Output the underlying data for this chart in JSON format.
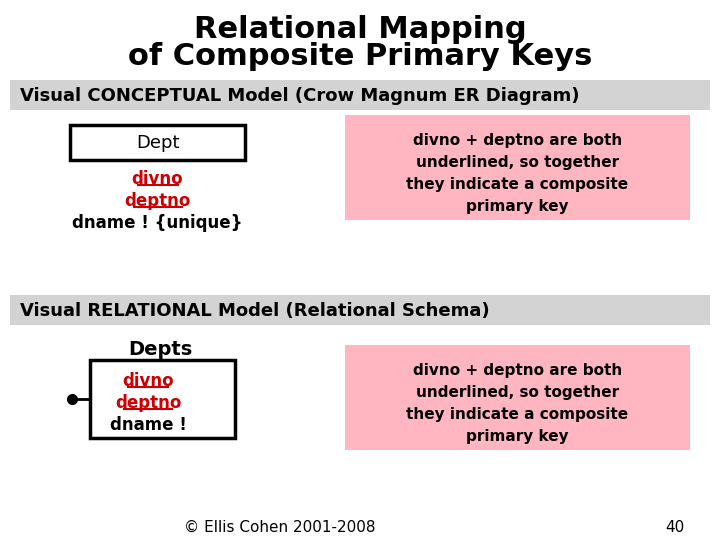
{
  "title_line1": "Relational Mapping",
  "title_line2": "of Composite Primary Keys",
  "title_fontsize": 22,
  "title_fontweight": "bold",
  "section1_label": "Visual CONCEPTUAL Model (Crow Magnum ER Diagram)",
  "section2_label": "Visual RELATIONAL Model (Relational Schema)",
  "section_bg": "#d3d3d3",
  "section_fontsize": 13,
  "entity_label": "Dept",
  "entity_attrs_red": [
    "divno",
    "deptno"
  ],
  "entity_attrs_black": [
    "dname ! {unique}"
  ],
  "relational_title": "Depts",
  "relational_attrs_red": [
    "divno",
    "deptno"
  ],
  "relational_attrs_black": [
    "dname !"
  ],
  "pink_bg": "#ffb6c1",
  "pink_texts": [
    "divno + deptno are both",
    "underlined, so together",
    "they indicate a composite",
    "primary key"
  ],
  "footer_text": "© Ellis Cohen 2001-2008",
  "page_num": "40",
  "bg_color": "#ffffff",
  "red_color": "#cc0000",
  "black_color": "#000000"
}
